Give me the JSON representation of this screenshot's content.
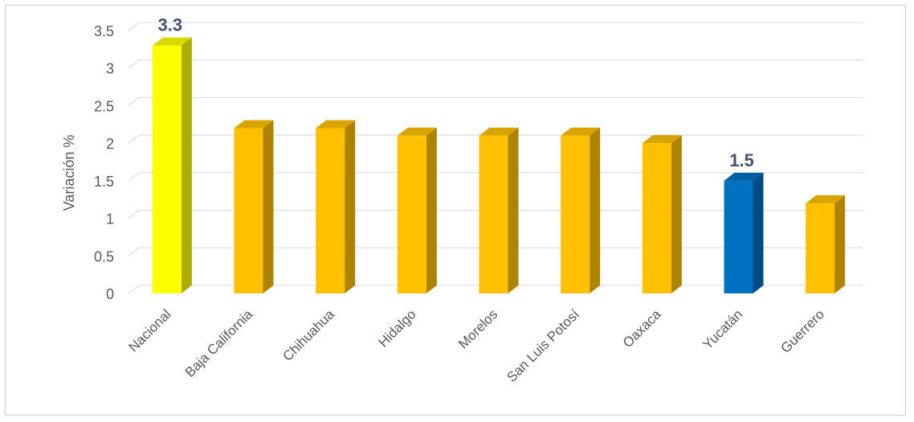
{
  "chart_data": {
    "type": "bar",
    "categories": [
      "Nacional",
      "Baja California",
      "Chihuahua",
      "Hidalgo",
      "Morelos",
      "San Luis Potosí",
      "Oaxaca",
      "Yucatán",
      "Guerrero"
    ],
    "values": [
      3.3,
      2.2,
      2.2,
      2.1,
      2.1,
      2.1,
      2.0,
      1.5,
      1.2
    ],
    "data_labels": [
      {
        "category": "Nacional",
        "text": "3.3"
      },
      {
        "category": "Yucatán",
        "text": "1.5"
      }
    ],
    "ylabel": "Variación %",
    "xlabel": "",
    "title": "",
    "ylim": [
      0,
      3.5
    ],
    "yticks": [
      "0",
      "0.5",
      "1",
      "1.5",
      "2",
      "2.5",
      "3",
      "3.5"
    ],
    "grid": true,
    "legend": "none",
    "style": "3d-column",
    "colors": {
      "default": "#ffc000",
      "highlight_national": "#ffff00",
      "highlight_state": "#0070c0",
      "gridline": "#d9d9d9",
      "tick_text": "#595959",
      "label_text": "#44546a"
    },
    "bar_colors": [
      "highlight_national",
      "default",
      "default",
      "default",
      "default",
      "default",
      "default",
      "highlight_state",
      "default"
    ]
  }
}
